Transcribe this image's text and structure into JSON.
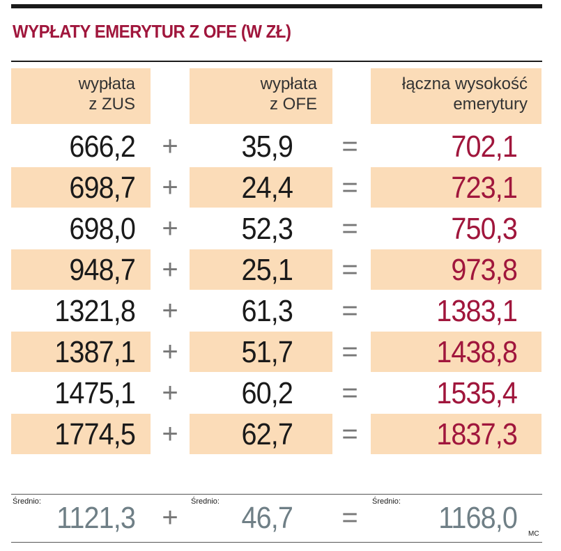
{
  "title": "WYPŁATY EMERYTUR Z OFE (W ZŁ)",
  "headers": [
    {
      "line1": "wypłata",
      "line2": "z ZUS"
    },
    {
      "line1": "wypłata",
      "line2": "z OFE"
    },
    {
      "line1": "łączna wysokość",
      "line2": "emerytury"
    }
  ],
  "operators": {
    "plus": "+",
    "equals": "="
  },
  "avg_label": "Średnio:",
  "source_tag": "MC",
  "colors": {
    "accent": "#a0163c",
    "stripe": "#fbdcb8",
    "average": "#6f7f86"
  },
  "chart_data": {
    "type": "table",
    "title": "WYPŁATY EMERYTUR Z OFE (W ZŁ)",
    "columns": [
      "wypłata z ZUS",
      "wypłata z OFE",
      "łączna wysokość emerytury"
    ],
    "rows": [
      [
        "666,2",
        "35,9",
        "702,1"
      ],
      [
        "698,7",
        "24,4",
        "723,1"
      ],
      [
        "698,0",
        "52,3",
        "750,3"
      ],
      [
        "948,7",
        "25,1",
        "973,8"
      ],
      [
        "1321,8",
        "61,3",
        "1383,1"
      ],
      [
        "1387,1",
        "51,7",
        "1438,8"
      ],
      [
        "1475,1",
        "60,2",
        "1535,4"
      ],
      [
        "1774,5",
        "62,7",
        "1837,3"
      ]
    ],
    "average": [
      "1121,3",
      "46,7",
      "1168,0"
    ]
  }
}
